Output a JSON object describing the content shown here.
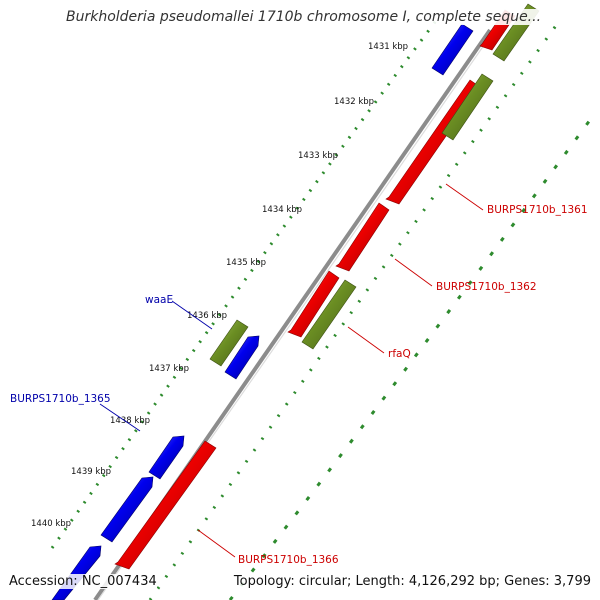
{
  "title": "Burkholderia pseudomallei 1710b chromosome I, complete seque...",
  "accession": "Accession: NC_007434",
  "summary": "Topology: circular; Length: 4,126,292 bp; Genes: 3,799",
  "colors": {
    "plus_strand": "#0000ee",
    "minus_strand": "#ee0000",
    "rna_feature": "#6b8e23",
    "backbone": "#808080",
    "tick_dots": "#2e8b2e"
  },
  "ruler": {
    "unit": "kbp",
    "ticks": [
      "1431 kbp",
      "1432 kbp",
      "1433 kbp",
      "1434 kbp",
      "1435 kbp",
      "1436 kbp",
      "1437 kbp",
      "1438 kbp",
      "1439 kbp",
      "1440 kbp"
    ]
  },
  "gene_labels": [
    {
      "text": "BURPS1710b_1361",
      "color": "#cc0000"
    },
    {
      "text": "BURPS1710b_1362",
      "color": "#cc0000"
    },
    {
      "text": "rfaQ",
      "color": "#cc0000"
    },
    {
      "text": "waaE",
      "color": "#0000aa"
    },
    {
      "text": "BURPS1710b_1365",
      "color": "#0000aa"
    },
    {
      "text": "BURPS1710b_1366",
      "color": "#cc0000"
    }
  ]
}
